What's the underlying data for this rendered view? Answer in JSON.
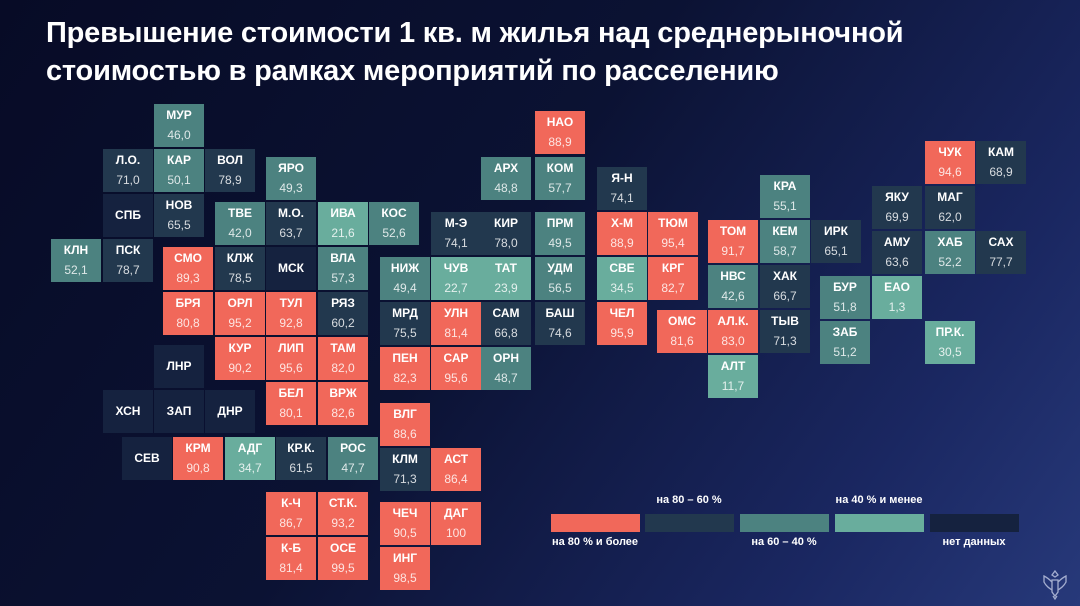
{
  "title": {
    "line1": "Превышение стоимости 1 кв. м жилья над среднерыночной",
    "line2": "стоимостью в рамках мероприятий по расселению"
  },
  "colors": {
    "high": "#f1685a",
    "mid": "#22384e",
    "low": "#4c8280",
    "min": "#69ad9d",
    "none": "#15223f"
  },
  "legend": [
    {
      "key": "high",
      "label": "на 80 % и более"
    },
    {
      "key": "mid",
      "label": "на 80 – 60 %"
    },
    {
      "key": "low",
      "label": "на 60 – 40 %"
    },
    {
      "key": "min",
      "label": "на 40 % и менее"
    },
    {
      "key": "none",
      "label": "нет данных"
    }
  ],
  "map": {
    "regions": [
      {
        "code": "МУР",
        "value": "46,0",
        "cat": "low"
      },
      {
        "code": "Л.О.",
        "value": "71,0",
        "cat": "mid"
      },
      {
        "code": "КАР",
        "value": "50,1",
        "cat": "low"
      },
      {
        "code": "ВОЛ",
        "value": "78,9",
        "cat": "mid"
      },
      {
        "code": "ЯРО",
        "value": "49,3",
        "cat": "low"
      },
      {
        "code": "НАО",
        "value": "88,9",
        "cat": "high"
      },
      {
        "code": "АРХ",
        "value": "48,8",
        "cat": "low"
      },
      {
        "code": "КОМ",
        "value": "57,7",
        "cat": "low"
      },
      {
        "code": "Я-Н",
        "value": "74,1",
        "cat": "mid"
      },
      {
        "code": "ЧУК",
        "value": "94,6",
        "cat": "high"
      },
      {
        "code": "КАМ",
        "value": "68,9",
        "cat": "mid"
      },
      {
        "code": "КРА",
        "value": "55,1",
        "cat": "low"
      },
      {
        "code": "ЯКУ",
        "value": "69,9",
        "cat": "mid"
      },
      {
        "code": "МАГ",
        "value": "62,0",
        "cat": "mid"
      },
      {
        "code": "СПБ",
        "value": "",
        "cat": "none"
      },
      {
        "code": "НОВ",
        "value": "65,5",
        "cat": "mid"
      },
      {
        "code": "ТВЕ",
        "value": "42,0",
        "cat": "low"
      },
      {
        "code": "М.О.",
        "value": "63,7",
        "cat": "mid"
      },
      {
        "code": "ИВА",
        "value": "21,6",
        "cat": "min"
      },
      {
        "code": "КОС",
        "value": "52,6",
        "cat": "low"
      },
      {
        "code": "М-Э",
        "value": "74,1",
        "cat": "mid"
      },
      {
        "code": "КИР",
        "value": "78,0",
        "cat": "mid"
      },
      {
        "code": "ПРМ",
        "value": "49,5",
        "cat": "low"
      },
      {
        "code": "Х-М",
        "value": "88,9",
        "cat": "high"
      },
      {
        "code": "ТЮМ",
        "value": "95,4",
        "cat": "high"
      },
      {
        "code": "ТОМ",
        "value": "91,7",
        "cat": "high"
      },
      {
        "code": "КЕМ",
        "value": "58,7",
        "cat": "low"
      },
      {
        "code": "ИРК",
        "value": "65,1",
        "cat": "mid"
      },
      {
        "code": "АМУ",
        "value": "63,6",
        "cat": "mid"
      },
      {
        "code": "ХАБ",
        "value": "52,2",
        "cat": "low"
      },
      {
        "code": "САХ",
        "value": "77,7",
        "cat": "mid"
      },
      {
        "code": "КЛН",
        "value": "52,1",
        "cat": "low"
      },
      {
        "code": "ПСК",
        "value": "78,7",
        "cat": "mid"
      },
      {
        "code": "СМО",
        "value": "89,3",
        "cat": "high"
      },
      {
        "code": "КЛЖ",
        "value": "78,5",
        "cat": "mid"
      },
      {
        "code": "МСК",
        "value": "",
        "cat": "none"
      },
      {
        "code": "ВЛА",
        "value": "57,3",
        "cat": "low"
      },
      {
        "code": "НИЖ",
        "value": "49,4",
        "cat": "low"
      },
      {
        "code": "ЧУВ",
        "value": "22,7",
        "cat": "min"
      },
      {
        "code": "ТАТ",
        "value": "23,9",
        "cat": "min"
      },
      {
        "code": "УДМ",
        "value": "56,5",
        "cat": "low"
      },
      {
        "code": "СВЕ",
        "value": "34,5",
        "cat": "min"
      },
      {
        "code": "КРГ",
        "value": "82,7",
        "cat": "high"
      },
      {
        "code": "НВС",
        "value": "42,6",
        "cat": "low"
      },
      {
        "code": "ХАК",
        "value": "66,7",
        "cat": "mid"
      },
      {
        "code": "БУР",
        "value": "51,8",
        "cat": "low"
      },
      {
        "code": "ЕАО",
        "value": "1,3",
        "cat": "min"
      },
      {
        "code": "БРЯ",
        "value": "80,8",
        "cat": "high"
      },
      {
        "code": "ОРЛ",
        "value": "95,2",
        "cat": "high"
      },
      {
        "code": "ТУЛ",
        "value": "92,8",
        "cat": "high"
      },
      {
        "code": "РЯЗ",
        "value": "60,2",
        "cat": "mid"
      },
      {
        "code": "МРД",
        "value": "75,5",
        "cat": "mid"
      },
      {
        "code": "УЛН",
        "value": "81,4",
        "cat": "high"
      },
      {
        "code": "САМ",
        "value": "66,8",
        "cat": "mid"
      },
      {
        "code": "БАШ",
        "value": "74,6",
        "cat": "mid"
      },
      {
        "code": "ЧЕЛ",
        "value": "95,9",
        "cat": "high"
      },
      {
        "code": "ОМС",
        "value": "81,6",
        "cat": "high"
      },
      {
        "code": "АЛ.К.",
        "value": "83,0",
        "cat": "high"
      },
      {
        "code": "ТЫВ",
        "value": "71,3",
        "cat": "mid"
      },
      {
        "code": "ЗАБ",
        "value": "51,2",
        "cat": "low"
      },
      {
        "code": "ПР.К.",
        "value": "30,5",
        "cat": "min"
      },
      {
        "code": "ЛНР",
        "value": "",
        "cat": "none"
      },
      {
        "code": "КУР",
        "value": "90,2",
        "cat": "high"
      },
      {
        "code": "ЛИП",
        "value": "95,6",
        "cat": "high"
      },
      {
        "code": "ТАМ",
        "value": "82,0",
        "cat": "high"
      },
      {
        "code": "ПЕН",
        "value": "82,3",
        "cat": "high"
      },
      {
        "code": "САР",
        "value": "95,6",
        "cat": "high"
      },
      {
        "code": "ОРН",
        "value": "48,7",
        "cat": "low"
      },
      {
        "code": "АЛТ",
        "value": "11,7",
        "cat": "min"
      },
      {
        "code": "ХСН",
        "value": "",
        "cat": "none"
      },
      {
        "code": "ЗАП",
        "value": "",
        "cat": "none"
      },
      {
        "code": "ДНР",
        "value": "",
        "cat": "none"
      },
      {
        "code": "БЕЛ",
        "value": "80,1",
        "cat": "high"
      },
      {
        "code": "ВРЖ",
        "value": "82,6",
        "cat": "high"
      },
      {
        "code": "ВЛГ",
        "value": "88,6",
        "cat": "high"
      },
      {
        "code": "СЕВ",
        "value": "",
        "cat": "none"
      },
      {
        "code": "КРМ",
        "value": "90,8",
        "cat": "high"
      },
      {
        "code": "АДГ",
        "value": "34,7",
        "cat": "min"
      },
      {
        "code": "КР.К.",
        "value": "61,5",
        "cat": "mid"
      },
      {
        "code": "РОС",
        "value": "47,7",
        "cat": "low"
      },
      {
        "code": "КЛМ",
        "value": "71,3",
        "cat": "mid"
      },
      {
        "code": "АСТ",
        "value": "86,4",
        "cat": "high"
      },
      {
        "code": "К-Ч",
        "value": "86,7",
        "cat": "high"
      },
      {
        "code": "СТ.К.",
        "value": "93,2",
        "cat": "high"
      },
      {
        "code": "ЧЕЧ",
        "value": "90,5",
        "cat": "high"
      },
      {
        "code": "ДАГ",
        "value": "100",
        "cat": "high"
      },
      {
        "code": "К-Б",
        "value": "81,4",
        "cat": "high"
      },
      {
        "code": "ОСЕ",
        "value": "99,5",
        "cat": "high"
      },
      {
        "code": "ИНГ",
        "value": "98,5",
        "cat": "high"
      }
    ]
  }
}
